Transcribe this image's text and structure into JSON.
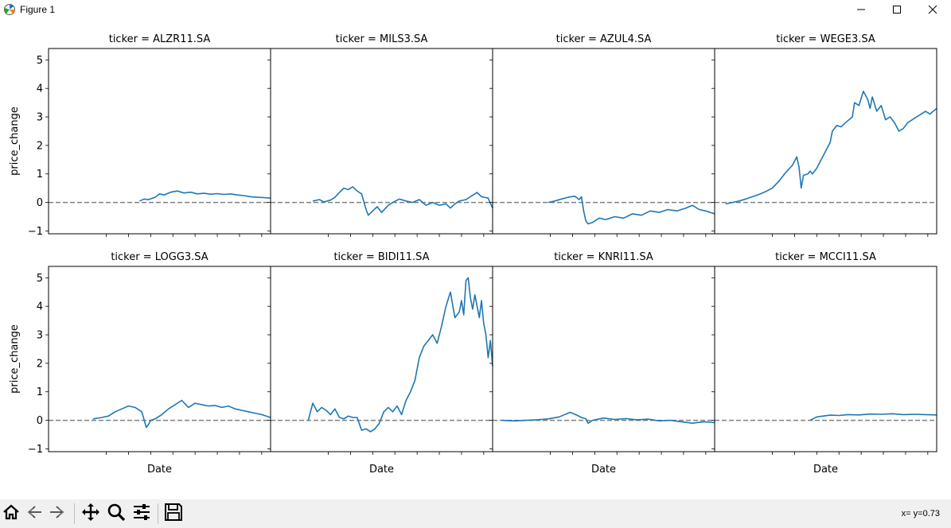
{
  "window": {
    "title": "Figure 1",
    "controls": [
      "minimize",
      "maximize",
      "close"
    ]
  },
  "toolbar": {
    "buttons": [
      "home-icon",
      "back-icon",
      "forward-icon",
      "pan-icon",
      "zoom-icon",
      "configure-subplots-icon",
      "save-icon"
    ],
    "coords": "x= y=0.73"
  },
  "chart_data": {
    "type": "line",
    "layout": "facet-grid-2x4",
    "shared_y": true,
    "ylabel": "price_change",
    "xlabel": "Date",
    "ylim": [
      -1.1,
      5.4
    ],
    "yticks": [
      -1,
      0,
      1,
      2,
      3,
      4,
      5
    ],
    "x_tick_labels_shown": false,
    "x_domain": [
      0,
      100
    ],
    "reference_line": {
      "y": 0,
      "style": "dashed",
      "color": "#808080"
    },
    "line_color": "#1f77b4",
    "panels": [
      {
        "title": "ticker = ALZR11.SA",
        "x": [
          41,
          43,
          45,
          48,
          50,
          52,
          55,
          58,
          61,
          64,
          67,
          70,
          73,
          76,
          79,
          82,
          85,
          88,
          91,
          94,
          97,
          100
        ],
        "y": [
          0.05,
          0.12,
          0.1,
          0.18,
          0.3,
          0.26,
          0.36,
          0.4,
          0.33,
          0.36,
          0.3,
          0.32,
          0.29,
          0.31,
          0.28,
          0.3,
          0.26,
          0.24,
          0.2,
          0.18,
          0.17,
          0.15
        ]
      },
      {
        "title": "ticker = MILS3.SA",
        "x": [
          19,
          22,
          24,
          27,
          29,
          31,
          33,
          35,
          37,
          39,
          41,
          43,
          44,
          46,
          48,
          50,
          53,
          55,
          58,
          61,
          64,
          67,
          70,
          73,
          76,
          79,
          81,
          83,
          85,
          88,
          91,
          93,
          95,
          98,
          100
        ],
        "y": [
          0.05,
          0.1,
          0.02,
          0.08,
          0.18,
          0.35,
          0.5,
          0.45,
          0.55,
          0.4,
          0.3,
          -0.25,
          -0.45,
          -0.3,
          -0.15,
          -0.35,
          -0.1,
          0.0,
          0.12,
          0.05,
          0.0,
          0.1,
          -0.1,
          0.0,
          -0.1,
          -0.05,
          -0.2,
          -0.05,
          0.05,
          0.1,
          0.25,
          0.35,
          0.2,
          0.15,
          -0.2
        ]
      },
      {
        "title": "ticker = AZUL4.SA",
        "x": [
          25,
          28,
          31,
          34,
          37,
          39,
          40,
          41,
          42,
          43,
          45,
          48,
          51,
          55,
          59,
          63,
          67,
          71,
          75,
          79,
          83,
          87,
          90,
          93,
          96,
          100
        ],
        "y": [
          0.0,
          0.05,
          0.12,
          0.18,
          0.22,
          0.1,
          0.2,
          -0.3,
          -0.65,
          -0.75,
          -0.7,
          -0.55,
          -0.6,
          -0.5,
          -0.55,
          -0.4,
          -0.45,
          -0.3,
          -0.35,
          -0.25,
          -0.3,
          -0.2,
          -0.1,
          -0.25,
          -0.3,
          -0.4
        ]
      },
      {
        "title": "ticker = WEGE3.SA",
        "x": [
          5,
          8,
          11,
          14,
          17,
          20,
          23,
          26,
          29,
          32,
          35,
          37,
          38,
          39,
          40,
          42,
          43,
          44,
          46,
          48,
          50,
          52,
          53,
          55,
          57,
          59,
          62,
          63,
          65,
          67,
          69,
          70,
          71,
          73,
          75,
          77,
          79,
          81,
          83,
          85,
          87,
          89,
          91,
          93,
          95,
          97,
          100
        ],
        "y": [
          -0.05,
          0.0,
          0.05,
          0.12,
          0.2,
          0.28,
          0.38,
          0.5,
          0.75,
          1.05,
          1.3,
          1.6,
          1.25,
          0.5,
          0.95,
          1.0,
          1.1,
          1.0,
          1.2,
          1.5,
          1.8,
          2.1,
          2.5,
          2.7,
          2.65,
          2.8,
          3.0,
          3.5,
          3.4,
          3.9,
          3.6,
          3.3,
          3.7,
          3.2,
          3.4,
          2.9,
          3.0,
          2.8,
          2.5,
          2.6,
          2.8,
          2.9,
          3.0,
          3.1,
          3.2,
          3.1,
          3.3
        ]
      },
      {
        "title": "ticker = LOGG3.SA",
        "x": [
          20,
          24,
          27,
          30,
          33,
          36,
          39,
          42,
          44,
          45,
          46,
          48,
          51,
          54,
          57,
          60,
          63,
          66,
          69,
          72,
          75,
          78,
          81,
          84,
          87,
          90,
          93,
          96,
          100
        ],
        "y": [
          0.05,
          0.1,
          0.15,
          0.3,
          0.4,
          0.5,
          0.45,
          0.3,
          -0.25,
          -0.15,
          0.0,
          0.05,
          0.2,
          0.4,
          0.55,
          0.7,
          0.45,
          0.6,
          0.55,
          0.5,
          0.52,
          0.45,
          0.5,
          0.4,
          0.35,
          0.3,
          0.25,
          0.2,
          0.1
        ]
      },
      {
        "title": "ticker = BIDI11.SA",
        "x": [
          17,
          19,
          21,
          23,
          25,
          27,
          29,
          31,
          33,
          35,
          37,
          39,
          41,
          43,
          45,
          47,
          49,
          51,
          53,
          55,
          57,
          59,
          61,
          63,
          65,
          67,
          69,
          71,
          73,
          75,
          77,
          79,
          81,
          83,
          85,
          86,
          87,
          88,
          89,
          90,
          91,
          92,
          93,
          94,
          95,
          96,
          97,
          98,
          99,
          100
        ],
        "y": [
          0.0,
          0.6,
          0.3,
          0.45,
          0.35,
          0.2,
          0.4,
          0.1,
          0.05,
          0.15,
          0.1,
          0.1,
          -0.35,
          -0.3,
          -0.4,
          -0.3,
          -0.1,
          0.3,
          0.45,
          0.3,
          0.5,
          0.2,
          0.7,
          1.0,
          1.4,
          2.2,
          2.6,
          2.8,
          3.0,
          2.7,
          3.3,
          4.0,
          4.5,
          3.6,
          3.8,
          4.2,
          3.7,
          4.9,
          5.0,
          4.3,
          3.9,
          4.4,
          4.0,
          3.6,
          4.2,
          3.4,
          3.0,
          2.2,
          2.8,
          1.9
        ]
      },
      {
        "title": "ticker = KNRI11.SA",
        "x": [
          4,
          10,
          15,
          20,
          25,
          30,
          33,
          35,
          38,
          40,
          42,
          43,
          45,
          48,
          50,
          55,
          60,
          65,
          70,
          75,
          80,
          85,
          90,
          95,
          100
        ],
        "y": [
          0.0,
          -0.02,
          0.0,
          0.02,
          0.05,
          0.12,
          0.22,
          0.28,
          0.18,
          0.1,
          0.05,
          -0.1,
          0.0,
          0.05,
          0.08,
          0.03,
          0.06,
          0.02,
          0.04,
          -0.02,
          0.0,
          -0.05,
          -0.1,
          -0.05,
          -0.08
        ]
      },
      {
        "title": "ticker = MCCI11.SA",
        "x": [
          43,
          46,
          49,
          52,
          56,
          60,
          65,
          70,
          75,
          80,
          85,
          90,
          95,
          100
        ],
        "y": [
          0.0,
          0.12,
          0.15,
          0.18,
          0.17,
          0.2,
          0.19,
          0.22,
          0.21,
          0.23,
          0.2,
          0.21,
          0.2,
          0.19
        ]
      }
    ]
  }
}
